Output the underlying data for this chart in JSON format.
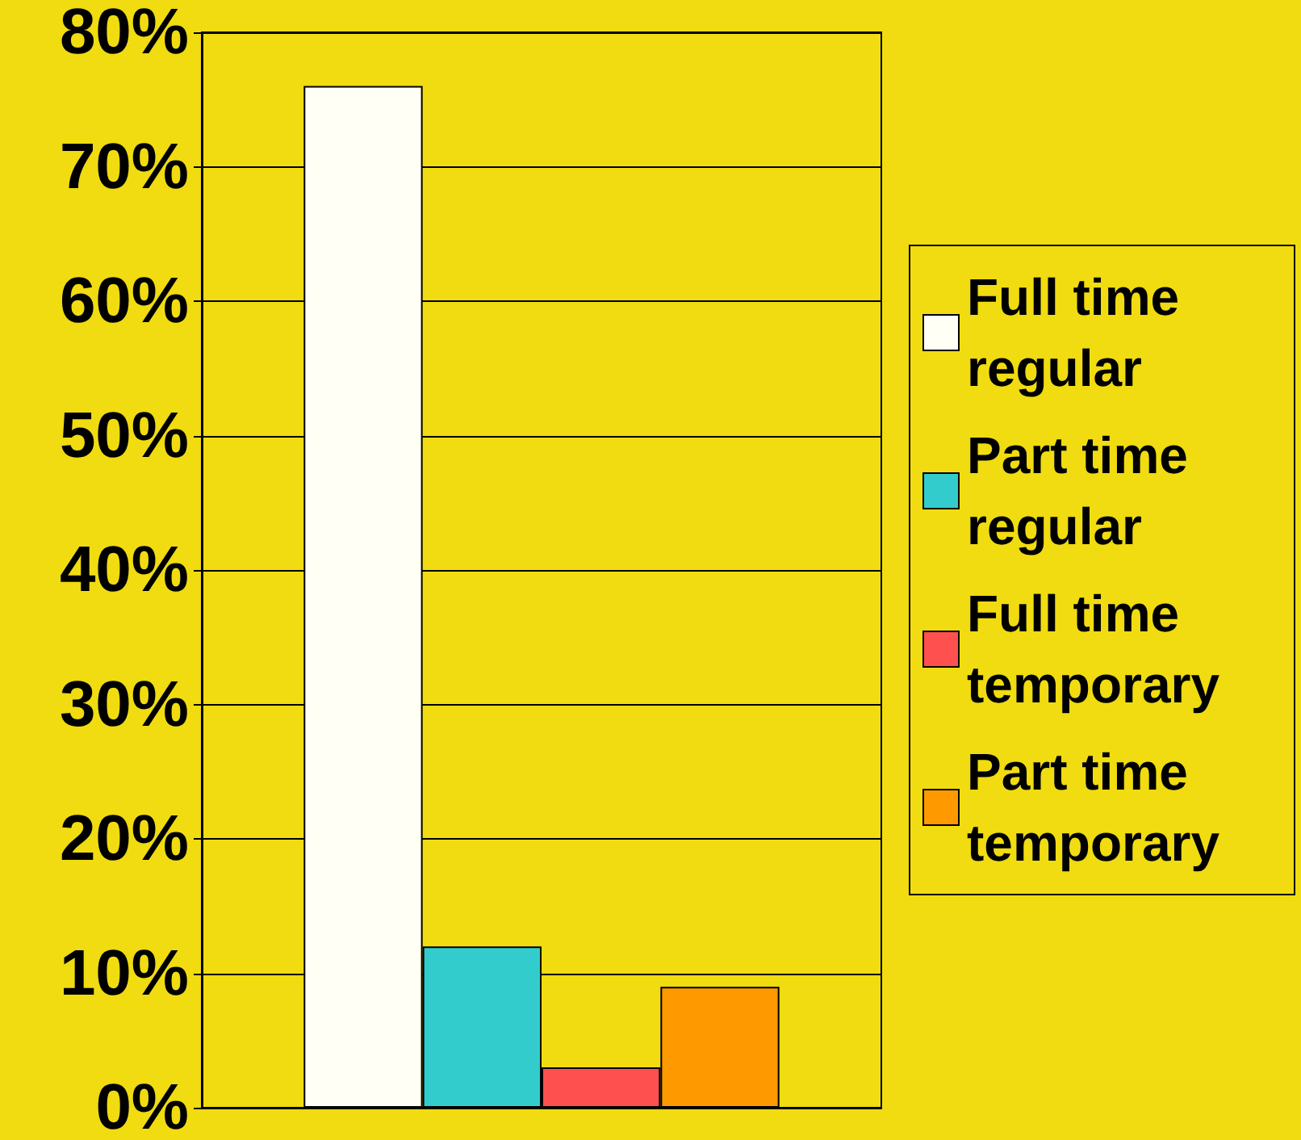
{
  "chart_data": {
    "type": "bar",
    "categories": [
      null
    ],
    "series": [
      {
        "name": "Full time regular",
        "color": "#fffff5",
        "values": [
          76
        ]
      },
      {
        "name": "Part time regular",
        "color": "#33cccc",
        "values": [
          12
        ]
      },
      {
        "name": "Full time temporary",
        "color": "#ff5050",
        "values": [
          3
        ]
      },
      {
        "name": "Part time temporary",
        "color": "#ff9900",
        "values": [
          9
        ]
      }
    ],
    "ylim": [
      0,
      80
    ],
    "yticks": [
      {
        "value": 0,
        "label": "0%"
      },
      {
        "value": 10,
        "label": "10%"
      },
      {
        "value": 20,
        "label": "20%"
      },
      {
        "value": 30,
        "label": "30%"
      },
      {
        "value": 40,
        "label": "40%"
      },
      {
        "value": 50,
        "label": "50%"
      },
      {
        "value": 60,
        "label": "60%"
      },
      {
        "value": 70,
        "label": "70%"
      },
      {
        "value": 80,
        "label": "80%"
      }
    ],
    "grid": "y",
    "legend": "right"
  }
}
